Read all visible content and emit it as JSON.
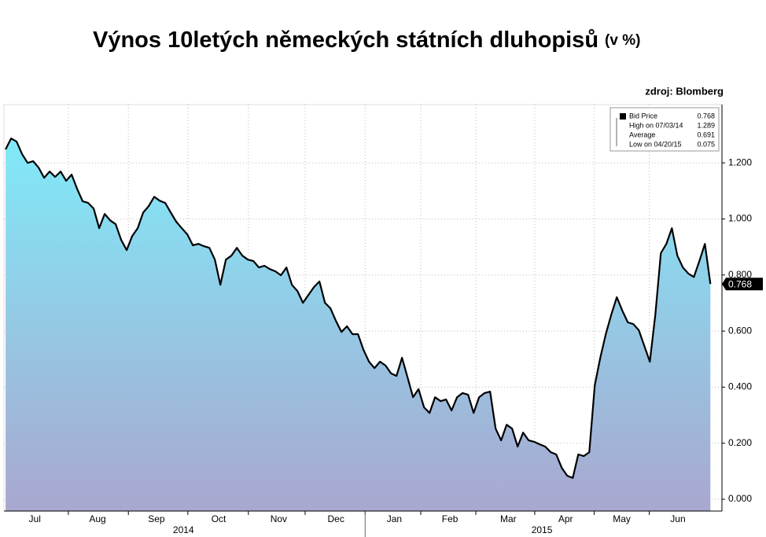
{
  "chart_data": {
    "type": "area",
    "title": "Výnos 10letých německých státních dluhopisů",
    "subtitle": "(v %)",
    "source": "zdroj: Blomberg",
    "series": [
      {
        "name": "Bid Price",
        "color": "#000000",
        "values": [
          1.248,
          1.287,
          1.276,
          1.231,
          1.2,
          1.206,
          1.183,
          1.147,
          1.169,
          1.15,
          1.169,
          1.136,
          1.158,
          1.107,
          1.063,
          1.057,
          1.037,
          0.967,
          1.018,
          0.995,
          0.981,
          0.925,
          0.889,
          0.939,
          0.967,
          1.023,
          1.046,
          1.079,
          1.065,
          1.057,
          1.023,
          0.99,
          0.967,
          0.945,
          0.906,
          0.911,
          0.903,
          0.897,
          0.855,
          0.765,
          0.855,
          0.869,
          0.897,
          0.869,
          0.855,
          0.85,
          0.827,
          0.833,
          0.821,
          0.813,
          0.799,
          0.827,
          0.765,
          0.743,
          0.701,
          0.729,
          0.757,
          0.777,
          0.701,
          0.681,
          0.636,
          0.597,
          0.617,
          0.589,
          0.589,
          0.533,
          0.491,
          0.468,
          0.491,
          0.477,
          0.449,
          0.44,
          0.505,
          0.435,
          0.364,
          0.393,
          0.328,
          0.308,
          0.364,
          0.35,
          0.356,
          0.317,
          0.364,
          0.379,
          0.373,
          0.308,
          0.364,
          0.379,
          0.384,
          0.252,
          0.21,
          0.266,
          0.252,
          0.188,
          0.238,
          0.21,
          0.205,
          0.196,
          0.188,
          0.168,
          0.16,
          0.112,
          0.084,
          0.076,
          0.16,
          0.154,
          0.168,
          0.407,
          0.505,
          0.589,
          0.659,
          0.721,
          0.673,
          0.631,
          0.625,
          0.603,
          0.547,
          0.491,
          0.659,
          0.878,
          0.911,
          0.967,
          0.869,
          0.827,
          0.805,
          0.793,
          0.85,
          0.911,
          0.768
        ]
      }
    ],
    "fill_top": "#80eaf9",
    "fill_bottom": "#a9a7cf",
    "ylim": [
      -0.042,
      1.408
    ],
    "yticks": [
      {
        "value": 0,
        "label": "0.000"
      },
      {
        "value": 0.2,
        "label": "0.200"
      },
      {
        "value": 0.4,
        "label": "0.400"
      },
      {
        "value": 0.6,
        "label": "0.600"
      },
      {
        "value": 0.8,
        "label": "0.800"
      },
      {
        "value": 1.0,
        "label": "1.000"
      },
      {
        "value": 1.2,
        "label": "1.200"
      }
    ],
    "xlim": [
      -0.3,
      130.1
    ],
    "xticks": [
      {
        "value": 5.3,
        "label": "Jul"
      },
      {
        "value": 16.7,
        "label": "Aug"
      },
      {
        "value": 27.4,
        "label": "Sep"
      },
      {
        "value": 38.7,
        "label": "Oct"
      },
      {
        "value": 49.6,
        "label": "Nov"
      },
      {
        "value": 60,
        "label": "Dec"
      },
      {
        "value": 70.6,
        "label": "Jan"
      },
      {
        "value": 80.7,
        "label": "Feb"
      },
      {
        "value": 91.3,
        "label": "Mar"
      },
      {
        "value": 101.7,
        "label": "Apr"
      },
      {
        "value": 111.9,
        "label": "May"
      },
      {
        "value": 122.1,
        "label": "Jun"
      }
    ],
    "xgrid": [
      11.4,
      22.3,
      33.1,
      44.1,
      54.4,
      65.3,
      75.4,
      85.4,
      96.1,
      106.9,
      116.9
    ],
    "years": [
      {
        "value": 32.3,
        "label": "2014"
      },
      {
        "value": 97.4,
        "label": "2015"
      }
    ],
    "grid": true,
    "legend": [
      {
        "name": "Bid Price",
        "value": 0.768
      },
      {
        "name": "High on 07/03/14",
        "value": 1.289
      },
      {
        "name": "Average",
        "value": 0.691
      },
      {
        "name": "Low on 04/20/15",
        "value": 0.075
      }
    ]
  }
}
